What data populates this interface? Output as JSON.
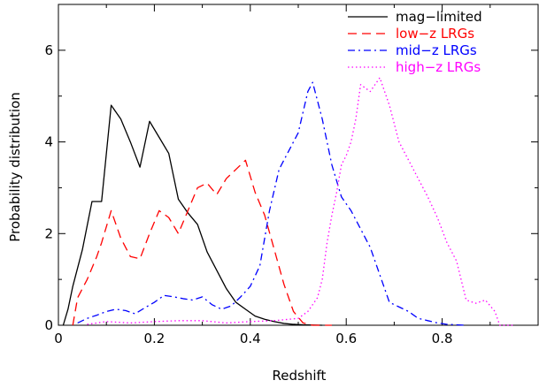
{
  "chart_data": {
    "type": "line",
    "title": "",
    "xlabel": "Redshift",
    "ylabel": "Probability distribution",
    "xlim": [
      0,
      1.0
    ],
    "ylim": [
      0,
      7
    ],
    "xticks": [
      0,
      0.2,
      0.4,
      0.6,
      0.8
    ],
    "xtick_labels": [
      "0",
      "0.2",
      "0.4",
      "0.6",
      "0.8"
    ],
    "yticks": [
      0,
      2,
      4,
      6
    ],
    "ytick_labels": [
      "0",
      "2",
      "4",
      "6"
    ],
    "grid": false,
    "legend_position": "top-right",
    "series": [
      {
        "name": "mag−limited",
        "color": "#000000",
        "dash": "solid",
        "points": [
          [
            0.01,
            0.0
          ],
          [
            0.02,
            0.35
          ],
          [
            0.03,
            0.85
          ],
          [
            0.05,
            1.65
          ],
          [
            0.07,
            2.7
          ],
          [
            0.09,
            2.7
          ],
          [
            0.11,
            4.8
          ],
          [
            0.13,
            4.5
          ],
          [
            0.15,
            4.0
          ],
          [
            0.17,
            3.45
          ],
          [
            0.19,
            4.45
          ],
          [
            0.21,
            4.1
          ],
          [
            0.23,
            3.75
          ],
          [
            0.25,
            2.75
          ],
          [
            0.27,
            2.45
          ],
          [
            0.29,
            2.2
          ],
          [
            0.31,
            1.6
          ],
          [
            0.33,
            1.2
          ],
          [
            0.35,
            0.8
          ],
          [
            0.37,
            0.5
          ],
          [
            0.39,
            0.35
          ],
          [
            0.41,
            0.2
          ],
          [
            0.43,
            0.13
          ],
          [
            0.45,
            0.08
          ],
          [
            0.47,
            0.04
          ],
          [
            0.49,
            0.02
          ],
          [
            0.51,
            0.01
          ],
          [
            0.55,
            0.0
          ]
        ]
      },
      {
        "name": "low−z LRGs",
        "color": "#ff0000",
        "dash": "dashed",
        "points": [
          [
            0.03,
            0.0
          ],
          [
            0.04,
            0.6
          ],
          [
            0.06,
            1.0
          ],
          [
            0.08,
            1.5
          ],
          [
            0.09,
            1.8
          ],
          [
            0.11,
            2.5
          ],
          [
            0.13,
            1.9
          ],
          [
            0.15,
            1.5
          ],
          [
            0.17,
            1.45
          ],
          [
            0.19,
            2.0
          ],
          [
            0.21,
            2.5
          ],
          [
            0.23,
            2.35
          ],
          [
            0.25,
            2.0
          ],
          [
            0.27,
            2.5
          ],
          [
            0.29,
            3.0
          ],
          [
            0.31,
            3.1
          ],
          [
            0.33,
            2.85
          ],
          [
            0.35,
            3.2
          ],
          [
            0.37,
            3.4
          ],
          [
            0.39,
            3.6
          ],
          [
            0.41,
            2.9
          ],
          [
            0.43,
            2.4
          ],
          [
            0.45,
            1.65
          ],
          [
            0.47,
            0.9
          ],
          [
            0.49,
            0.3
          ],
          [
            0.51,
            0.05
          ],
          [
            0.53,
            0.0
          ],
          [
            0.57,
            0.0
          ]
        ]
      },
      {
        "name": "mid−z LRGs",
        "color": "#0000ff",
        "dash": "dashdot",
        "points": [
          [
            0.04,
            0.05
          ],
          [
            0.06,
            0.15
          ],
          [
            0.08,
            0.22
          ],
          [
            0.1,
            0.3
          ],
          [
            0.12,
            0.35
          ],
          [
            0.14,
            0.32
          ],
          [
            0.16,
            0.25
          ],
          [
            0.18,
            0.38
          ],
          [
            0.2,
            0.5
          ],
          [
            0.22,
            0.65
          ],
          [
            0.24,
            0.62
          ],
          [
            0.26,
            0.58
          ],
          [
            0.28,
            0.55
          ],
          [
            0.3,
            0.62
          ],
          [
            0.32,
            0.45
          ],
          [
            0.34,
            0.35
          ],
          [
            0.36,
            0.42
          ],
          [
            0.38,
            0.62
          ],
          [
            0.4,
            0.85
          ],
          [
            0.42,
            1.3
          ],
          [
            0.44,
            2.5
          ],
          [
            0.46,
            3.4
          ],
          [
            0.48,
            3.8
          ],
          [
            0.5,
            4.2
          ],
          [
            0.52,
            5.1
          ],
          [
            0.53,
            5.3
          ],
          [
            0.55,
            4.5
          ],
          [
            0.57,
            3.5
          ],
          [
            0.59,
            2.8
          ],
          [
            0.61,
            2.5
          ],
          [
            0.63,
            2.1
          ],
          [
            0.65,
            1.7
          ],
          [
            0.67,
            1.1
          ],
          [
            0.69,
            0.5
          ],
          [
            0.71,
            0.4
          ],
          [
            0.73,
            0.3
          ],
          [
            0.75,
            0.15
          ],
          [
            0.77,
            0.1
          ],
          [
            0.79,
            0.05
          ],
          [
            0.81,
            0.02
          ],
          [
            0.85,
            0.0
          ]
        ]
      },
      {
        "name": "high−z LRGs",
        "color": "#ff00ff",
        "dash": "dotted",
        "points": [
          [
            0.06,
            0.02
          ],
          [
            0.1,
            0.08
          ],
          [
            0.15,
            0.05
          ],
          [
            0.2,
            0.08
          ],
          [
            0.25,
            0.1
          ],
          [
            0.3,
            0.1
          ],
          [
            0.35,
            0.05
          ],
          [
            0.4,
            0.08
          ],
          [
            0.45,
            0.1
          ],
          [
            0.5,
            0.15
          ],
          [
            0.52,
            0.3
          ],
          [
            0.54,
            0.6
          ],
          [
            0.55,
            1.0
          ],
          [
            0.56,
            1.8
          ],
          [
            0.57,
            2.4
          ],
          [
            0.58,
            2.9
          ],
          [
            0.59,
            3.5
          ],
          [
            0.6,
            3.7
          ],
          [
            0.61,
            4.0
          ],
          [
            0.62,
            4.5
          ],
          [
            0.63,
            5.25
          ],
          [
            0.65,
            5.1
          ],
          [
            0.67,
            5.4
          ],
          [
            0.69,
            4.8
          ],
          [
            0.71,
            4.0
          ],
          [
            0.73,
            3.6
          ],
          [
            0.75,
            3.2
          ],
          [
            0.77,
            2.8
          ],
          [
            0.79,
            2.35
          ],
          [
            0.81,
            1.8
          ],
          [
            0.83,
            1.4
          ],
          [
            0.85,
            0.55
          ],
          [
            0.87,
            0.48
          ],
          [
            0.89,
            0.55
          ],
          [
            0.91,
            0.3
          ],
          [
            0.92,
            0.0
          ],
          [
            0.95,
            0.0
          ]
        ]
      }
    ]
  }
}
